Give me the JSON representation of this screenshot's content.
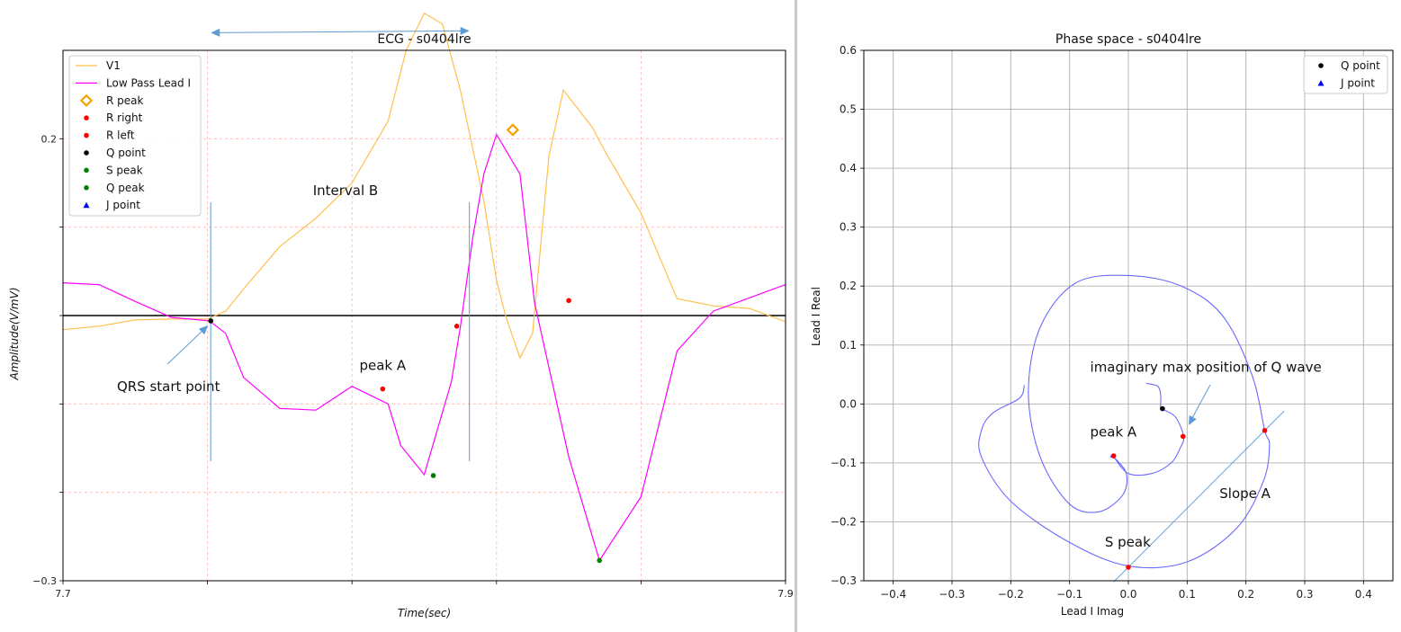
{
  "chart_data": [
    {
      "type": "line",
      "title": "ECG - s0404lre",
      "xlabel": "Time(sec)",
      "ylabel": "Amplitude(V/mV)",
      "xlim": [
        7.7,
        7.9
      ],
      "ylim": [
        -0.3,
        0.3
      ],
      "xticks": [
        7.7,
        7.74,
        7.78,
        7.82,
        7.86,
        7.9
      ],
      "xtick_labels": [
        "7.7",
        "",
        "",
        "",
        "",
        "7.9"
      ],
      "yticks": [
        -0.3,
        -0.2,
        -0.1,
        0.0,
        0.1,
        0.2
      ],
      "ytick_labels": [
        "−0.3",
        "",
        "",
        "",
        "",
        "0.2"
      ],
      "grid": "dashed light red",
      "legend_position": "upper-left",
      "legend": [
        {
          "label": "V1",
          "kind": "line",
          "color": "#ffc04d"
        },
        {
          "label": "Low Pass Lead I",
          "kind": "line",
          "color": "#ff00ff"
        },
        {
          "label": "R peak",
          "kind": "diamond",
          "color": "#f5a300"
        },
        {
          "label": "R right",
          "kind": "dot",
          "color": "#ff0000"
        },
        {
          "label": "R left",
          "kind": "dot",
          "color": "#ff0000"
        },
        {
          "label": "Q point",
          "kind": "dot",
          "color": "#000000"
        },
        {
          "label": "S peak",
          "kind": "dot",
          "color": "#008000"
        },
        {
          "label": "Q peak",
          "kind": "dot",
          "color": "#008000"
        },
        {
          "label": "J point",
          "kind": "triangle",
          "color": "#0000ff"
        }
      ],
      "series": [
        {
          "name": "V1",
          "color": "#ffc04d",
          "x": [
            7.7,
            7.71,
            7.72,
            7.73,
            7.74,
            7.745,
            7.75,
            7.76,
            7.77,
            7.78,
            7.79,
            7.795,
            7.8,
            7.805,
            7.81,
            7.8165,
            7.82,
            7.8225,
            7.8265,
            7.83,
            7.8345,
            7.8385,
            7.8465,
            7.85,
            7.86,
            7.87,
            7.88,
            7.89,
            7.9
          ],
          "y": [
            -0.016,
            -0.012,
            -0.005,
            -0.004,
            -0.004,
            0.005,
            0.03,
            0.078,
            0.11,
            0.15,
            0.22,
            0.3,
            0.342,
            0.33,
            0.255,
            0.13,
            0.04,
            0.0,
            -0.048,
            -0.02,
            0.18,
            0.255,
            0.213,
            0.186,
            0.116,
            0.019,
            0.011,
            0.008,
            -0.007
          ]
        },
        {
          "name": "Low Pass Lead I",
          "color": "#ff00ff",
          "x": [
            7.7,
            7.71,
            7.72,
            7.73,
            7.7405,
            7.745,
            7.75,
            7.76,
            7.77,
            7.78,
            7.79,
            7.7935,
            7.8,
            7.8075,
            7.81,
            7.8135,
            7.8165,
            7.82,
            7.8265,
            7.8305,
            7.84,
            7.8485,
            7.86,
            7.87,
            7.88,
            7.9
          ],
          "y": [
            0.037,
            0.035,
            0.016,
            -0.002,
            -0.006,
            -0.02,
            -0.07,
            -0.105,
            -0.107,
            -0.08,
            -0.1,
            -0.147,
            -0.18,
            -0.075,
            -0.013,
            0.09,
            0.16,
            0.205,
            0.16,
            0.015,
            -0.16,
            -0.277,
            -0.205,
            -0.04,
            0.005,
            0.035
          ]
        }
      ],
      "markers": [
        {
          "label": "R peak",
          "x": 7.8245,
          "y": 0.21
        },
        {
          "label": "R right",
          "x": 7.809,
          "y": -0.012
        },
        {
          "label": "R left",
          "x": 7.84,
          "y": 0.017
        },
        {
          "label": "R right",
          "x": 7.7885,
          "y": -0.083
        },
        {
          "label": "Q point",
          "x": 7.7409,
          "y": -0.006
        },
        {
          "label": "S peak",
          "x": 7.8025,
          "y": -0.181
        },
        {
          "label": "Q peak",
          "x": 7.8485,
          "y": -0.277
        }
      ],
      "annotations": {
        "interval": {
          "label": "Interval B",
          "x_start": 7.7409,
          "x_end": 7.8125,
          "y": 0.32
        },
        "peak": {
          "label": "peak A",
          "x": 7.7885,
          "y": -0.083
        },
        "qrs": {
          "label": "QRS start point",
          "x": 7.7409,
          "y": -0.006
        }
      }
    },
    {
      "type": "scatter",
      "title": "Phase space - s0404lre",
      "xlabel": "Lead I Imag",
      "ylabel": "Lead I Real",
      "xlim": [
        -0.45,
        0.45
      ],
      "ylim": [
        -0.3,
        0.6
      ],
      "xticks": [
        -0.4,
        -0.3,
        -0.2,
        -0.1,
        0.0,
        0.1,
        0.2,
        0.3,
        0.4
      ],
      "xtick_labels": [
        "−0.4",
        "−0.3",
        "−0.2",
        "−0.1",
        "0.0",
        "0.1",
        "0.2",
        "0.3",
        "0.4"
      ],
      "yticks": [
        -0.3,
        -0.2,
        -0.1,
        0.0,
        0.1,
        0.2,
        0.3,
        0.4,
        0.5,
        0.6
      ],
      "ytick_labels": [
        "−0.3",
        "−0.2",
        "−0.1",
        "0.0",
        "0.1",
        "0.2",
        "0.3",
        "0.4",
        "0.5",
        "0.6"
      ],
      "grid": true,
      "legend_position": "upper-right",
      "legend": [
        {
          "label": "Q point",
          "kind": "dot",
          "color": "#000000"
        },
        {
          "label": "J point",
          "kind": "triangle",
          "color": "#0000ff"
        }
      ],
      "series": [
        {
          "name": "trajectory",
          "color": "#6a6aff",
          "x": [
            -0.177,
            -0.185,
            -0.23,
            -0.25,
            -0.25,
            -0.2,
            -0.1,
            0.0,
            0.1,
            0.185,
            0.23,
            0.24,
            0.232,
            0.21,
            0.16,
            0.09,
            0.0,
            -0.09,
            -0.15,
            -0.17,
            -0.15,
            -0.1,
            -0.05,
            -0.01,
            -0.003,
            -0.02,
            -0.03,
            -0.025,
            0.0,
            0.04,
            0.073,
            0.088,
            0.094,
            0.08,
            0.057,
            0.055,
            0.055,
            0.05,
            0.03
          ],
          "y": [
            0.032,
            0.01,
            -0.015,
            -0.045,
            -0.09,
            -0.165,
            -0.235,
            -0.275,
            -0.268,
            -0.21,
            -0.13,
            -0.07,
            -0.045,
            0.05,
            0.15,
            0.2,
            0.218,
            0.205,
            0.13,
            0.02,
            -0.09,
            -0.17,
            -0.183,
            -0.155,
            -0.12,
            -0.095,
            -0.09,
            -0.09,
            -0.118,
            -0.118,
            -0.1,
            -0.075,
            -0.055,
            -0.022,
            -0.008,
            0.0,
            0.015,
            0.03,
            0.035
          ]
        }
      ],
      "markers": [
        {
          "label": "R right",
          "x": -0.025,
          "y": -0.088
        },
        {
          "label": "Q point",
          "x": 0.058,
          "y": -0.008
        },
        {
          "label": "R right",
          "x": 0.093,
          "y": -0.055
        },
        {
          "label": "R left",
          "x": 0.232,
          "y": -0.045
        },
        {
          "label": "S peak",
          "x": 0.0,
          "y": -0.277
        }
      ],
      "slope_line": {
        "x": [
          -0.025,
          0.265
        ],
        "y": [
          -0.302,
          -0.012
        ]
      },
      "annotations": {
        "imag": {
          "label": "imaginary max position of Q wave",
          "x": -0.065,
          "y": 0.055
        },
        "peak": {
          "label": "peak A",
          "x": -0.065,
          "y": -0.055
        },
        "slope": {
          "label": "Slope A",
          "x": 0.155,
          "y": -0.16
        },
        "speak": {
          "label": "S peak",
          "x": -0.04,
          "y": -0.242
        }
      }
    }
  ]
}
